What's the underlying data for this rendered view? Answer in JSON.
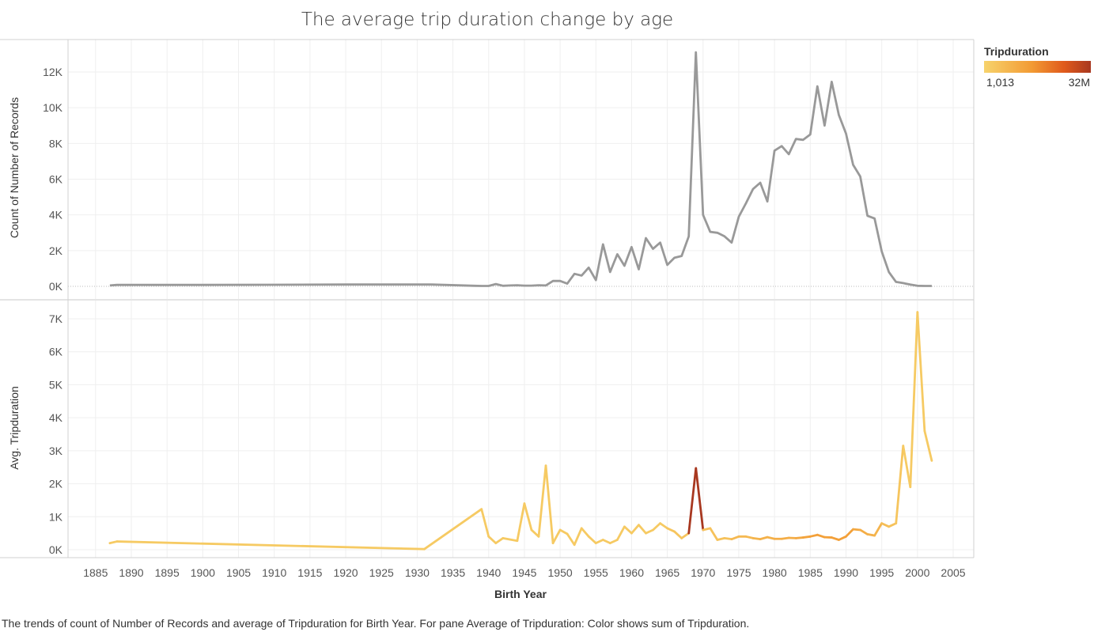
{
  "chart_data": [
    {
      "type": "line",
      "title": "The average trip duration change by age",
      "xlabel": "Birth Year",
      "ylabel": "Count of Number of Records",
      "ylim": [
        0,
        12800
      ],
      "xlim": [
        1880,
        2008
      ],
      "grid": true,
      "color": "#999999",
      "y_ticks": [
        0,
        2000,
        4000,
        6000,
        8000,
        10000,
        12000
      ],
      "y_tick_labels": [
        "0K",
        "2K",
        "4K",
        "6K",
        "8K",
        "10K",
        "12K"
      ],
      "x": [
        1887,
        1888,
        1890,
        1900,
        1910,
        1920,
        1930,
        1932,
        1938,
        1939,
        1940,
        1941,
        1942,
        1943,
        1944,
        1945,
        1946,
        1947,
        1948,
        1949,
        1950,
        1951,
        1952,
        1953,
        1954,
        1955,
        1956,
        1957,
        1958,
        1959,
        1960,
        1961,
        1962,
        1963,
        1964,
        1965,
        1966,
        1967,
        1968,
        1969,
        1970,
        1971,
        1972,
        1973,
        1974,
        1975,
        1976,
        1977,
        1978,
        1979,
        1980,
        1981,
        1982,
        1983,
        1984,
        1985,
        1986,
        1987,
        1988,
        1989,
        1990,
        1991,
        1992,
        1993,
        1994,
        1995,
        1996,
        1997,
        1998,
        1999,
        2000,
        2001,
        2002
      ],
      "values": [
        50,
        80,
        80,
        80,
        90,
        100,
        100,
        100,
        30,
        20,
        20,
        130,
        30,
        50,
        60,
        40,
        40,
        60,
        50,
        300,
        300,
        150,
        700,
        600,
        1050,
        350,
        2350,
        800,
        1800,
        1150,
        2200,
        950,
        2700,
        2100,
        2450,
        1200,
        1600,
        1700,
        2800,
        13100,
        4000,
        3050,
        3000,
        2800,
        2450,
        3900,
        4650,
        5450,
        5800,
        4750,
        7600,
        7850,
        7400,
        8250,
        8200,
        8500,
        11200,
        9000,
        11450,
        9600,
        8550,
        6800,
        6150,
        3950,
        3800,
        1950,
        800,
        250,
        180,
        100,
        30,
        20,
        20
      ]
    },
    {
      "type": "line",
      "xlabel": "Birth Year",
      "ylabel": "Avg. Tripduration",
      "ylim": [
        -100,
        7500
      ],
      "xlim": [
        1880,
        2008
      ],
      "grid": true,
      "y_ticks": [
        0,
        1000,
        2000,
        3000,
        4000,
        5000,
        6000,
        7000
      ],
      "y_tick_labels": [
        "0K",
        "1K",
        "2K",
        "3K",
        "4K",
        "5K",
        "6K",
        "7K"
      ],
      "color_legend": {
        "title": "Tripduration",
        "min_label": "1,013",
        "max_label": "32M",
        "colors": [
          "#f7d36c",
          "#f29a33",
          "#e05a1c",
          "#a83820"
        ]
      },
      "x": [
        1887,
        1888,
        1931,
        1939,
        1940,
        1941,
        1942,
        1944,
        1945,
        1946,
        1947,
        1948,
        1949,
        1950,
        1951,
        1952,
        1953,
        1954,
        1955,
        1956,
        1957,
        1958,
        1959,
        1960,
        1961,
        1962,
        1963,
        1964,
        1965,
        1966,
        1967,
        1968,
        1969,
        1970,
        1971,
        1972,
        1973,
        1974,
        1975,
        1976,
        1977,
        1978,
        1979,
        1980,
        1981,
        1982,
        1983,
        1984,
        1985,
        1986,
        1987,
        1988,
        1989,
        1990,
        1991,
        1992,
        1993,
        1994,
        1995,
        1996,
        1997,
        1998,
        1999,
        2000,
        2001,
        2002
      ],
      "values": [
        200,
        250,
        20,
        1230,
        400,
        200,
        350,
        270,
        1400,
        600,
        400,
        2550,
        200,
        600,
        480,
        150,
        650,
        400,
        200,
        300,
        200,
        300,
        700,
        500,
        750,
        500,
        600,
        800,
        650,
        550,
        350,
        500,
        2470,
        600,
        650,
        300,
        350,
        320,
        400,
        400,
        350,
        320,
        380,
        330,
        330,
        360,
        350,
        370,
        400,
        450,
        380,
        370,
        300,
        400,
        620,
        600,
        470,
        430,
        800,
        700,
        800,
        3150,
        1900,
        7200,
        3600,
        2700
      ],
      "series_color_intensity": [
        0.05,
        0.05,
        0.05,
        0.05,
        0.05,
        0.05,
        0.05,
        0.05,
        0.05,
        0.05,
        0.05,
        0.05,
        0.05,
        0.05,
        0.05,
        0.05,
        0.05,
        0.05,
        0.05,
        0.05,
        0.05,
        0.05,
        0.05,
        0.05,
        0.05,
        0.05,
        0.05,
        0.05,
        0.05,
        0.08,
        0.08,
        0.08,
        1.0,
        0.1,
        0.1,
        0.1,
        0.1,
        0.1,
        0.15,
        0.15,
        0.15,
        0.18,
        0.2,
        0.2,
        0.22,
        0.22,
        0.22,
        0.25,
        0.28,
        0.3,
        0.3,
        0.3,
        0.3,
        0.3,
        0.25,
        0.22,
        0.2,
        0.18,
        0.12,
        0.1,
        0.08,
        0.05,
        0.05,
        0.05,
        0.05,
        0.05
      ]
    }
  ],
  "x_ticks": [
    1885,
    1890,
    1895,
    1900,
    1905,
    1910,
    1915,
    1920,
    1925,
    1930,
    1935,
    1940,
    1945,
    1950,
    1955,
    1960,
    1965,
    1970,
    1975,
    1980,
    1985,
    1990,
    1995,
    2000,
    2005
  ],
  "caption": "The trends of count of Number of Records and average of Tripduration for Birth Year.  For pane Average of Tripduration:  Color shows sum of Tripduration."
}
